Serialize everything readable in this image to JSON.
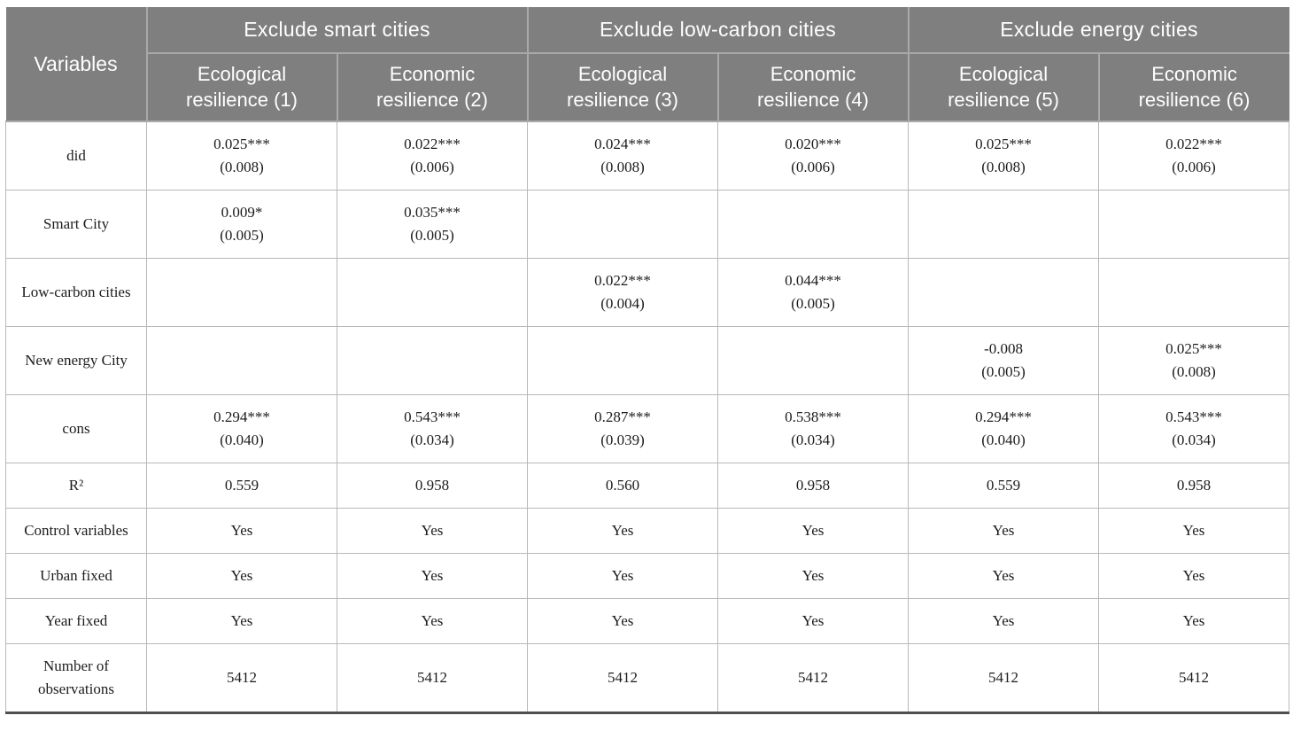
{
  "colors": {
    "header_bg": "#7f7f7f",
    "header_text": "#ffffff",
    "header_border": "#a9a9a9",
    "border_light": "#b9b9b9",
    "border_dark": "#4f4f4f"
  },
  "table": {
    "corner_label": "Variables",
    "groups": [
      {
        "label": "Exclude smart cities",
        "columns": [
          "Ecological resilience (1)",
          "Economic resilience (2)"
        ]
      },
      {
        "label": "Exclude low-carbon cities",
        "columns": [
          "Ecological resilience (3)",
          "Economic resilience (4)"
        ]
      },
      {
        "label": "Exclude energy cities",
        "columns": [
          "Ecological resilience (5)",
          "Economic resilience (6)"
        ]
      }
    ],
    "rows": [
      {
        "variable": "did",
        "cells": [
          [
            "0.025***",
            "(0.008)"
          ],
          [
            "0.022***",
            "(0.006)"
          ],
          [
            "0.024***",
            "(0.008)"
          ],
          [
            "0.020***",
            "(0.006)"
          ],
          [
            "0.025***",
            "(0.008)"
          ],
          [
            "0.022***",
            "(0.006)"
          ]
        ]
      },
      {
        "variable": "Smart City",
        "cells": [
          [
            "0.009*",
            "(0.005)"
          ],
          [
            "0.035***",
            "(0.005)"
          ],
          [],
          [],
          [],
          []
        ]
      },
      {
        "variable": "Low-carbon cities",
        "cells": [
          [],
          [],
          [
            "0.022***",
            "(0.004)"
          ],
          [
            "0.044***",
            "(0.005)"
          ],
          [],
          []
        ]
      },
      {
        "variable": "New energy City",
        "cells": [
          [],
          [],
          [],
          [],
          [
            "-0.008",
            "(0.005)"
          ],
          [
            "0.025***",
            "(0.008)"
          ]
        ]
      },
      {
        "variable": "cons",
        "cells": [
          [
            "0.294***",
            "(0.040)"
          ],
          [
            "0.543***",
            "(0.034)"
          ],
          [
            "0.287***",
            "(0.039)"
          ],
          [
            "0.538***",
            "(0.034)"
          ],
          [
            "0.294***",
            "(0.040)"
          ],
          [
            "0.543***",
            "(0.034)"
          ]
        ]
      },
      {
        "variable": "R²",
        "cells": [
          [
            "0.559"
          ],
          [
            "0.958"
          ],
          [
            "0.560"
          ],
          [
            "0.958"
          ],
          [
            "0.559"
          ],
          [
            "0.958"
          ]
        ]
      },
      {
        "variable": "Control variables",
        "cells": [
          [
            "Yes"
          ],
          [
            "Yes"
          ],
          [
            "Yes"
          ],
          [
            "Yes"
          ],
          [
            "Yes"
          ],
          [
            "Yes"
          ]
        ]
      },
      {
        "variable": "Urban fixed",
        "cells": [
          [
            "Yes"
          ],
          [
            "Yes"
          ],
          [
            "Yes"
          ],
          [
            "Yes"
          ],
          [
            "Yes"
          ],
          [
            "Yes"
          ]
        ]
      },
      {
        "variable": "Year fixed",
        "cells": [
          [
            "Yes"
          ],
          [
            "Yes"
          ],
          [
            "Yes"
          ],
          [
            "Yes"
          ],
          [
            "Yes"
          ],
          [
            "Yes"
          ]
        ]
      },
      {
        "variable": "Number of observations",
        "cells": [
          [
            "5412"
          ],
          [
            "5412"
          ],
          [
            "5412"
          ],
          [
            "5412"
          ],
          [
            "5412"
          ],
          [
            "5412"
          ]
        ]
      }
    ]
  }
}
